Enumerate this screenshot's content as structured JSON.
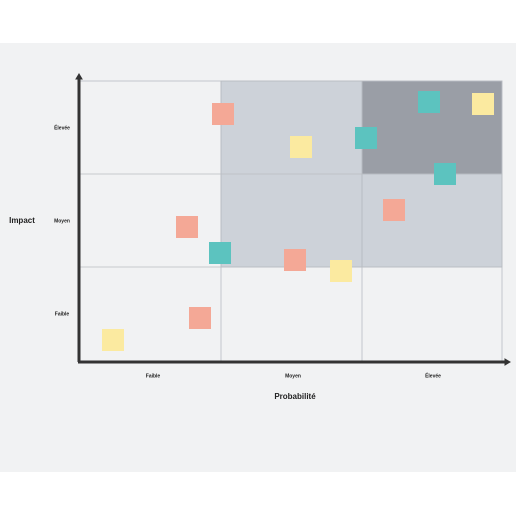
{
  "axes": {
    "y_title": "Impact",
    "x_title": "Probabilité",
    "y_labels": [
      "Élevée",
      "Moyen",
      "Faible"
    ],
    "x_labels": [
      "Faible",
      "Moyen",
      "Élevée"
    ]
  }
}
